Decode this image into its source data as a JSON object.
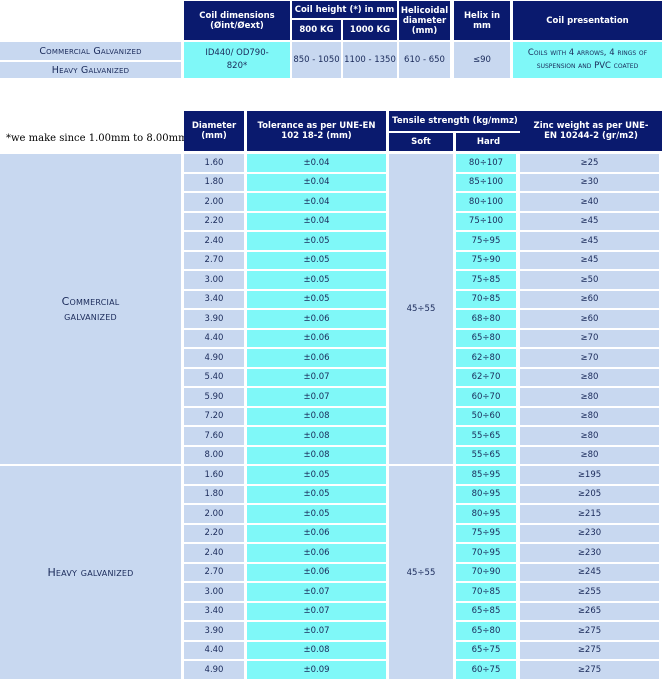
{
  "coil_table": {
    "headers": {
      "coil_dimensions": "Coil dimensions (Øint/Øext)",
      "coil_height": "Coil height (*) in mm",
      "kg800": "800 KG",
      "kg1000": "1000 KG",
      "helicoidal": "Helicoidal diameter (mm)",
      "helix": "Helix in mm",
      "presentation": "Coil presentation"
    },
    "row_commercial": "Commercial Galvanized",
    "row_heavy": "Heavy Galvanized",
    "dimensions": "ID440/ OD790-820*",
    "h800": "850 - 1050",
    "h1000": "1100 - 1350",
    "helicoidal_value": "610 - 650",
    "helix_value": "≤90",
    "presentation_value": "Coils with 4 arrows, 4 rings of suspension and PVC coated"
  },
  "note": "*we make since 1.00mm to 8.00mm",
  "spec_table": {
    "headers": {
      "diameter": "Diameter (mm)",
      "tolerance": "Tolerance as per UNE-EN 102 18-2 (mm)",
      "tensile": "Tensile strength (kg/mmz)",
      "soft": "Soft",
      "hard": "Hard",
      "zinc": "Zinc weight as per UNE-EN 10244-2 (gr/m2)"
    },
    "groups": [
      {
        "label": "Commercial galvanized",
        "soft": "45÷55",
        "rows": [
          {
            "d": "1.60",
            "t": "±0.04",
            "h": "80÷107",
            "z": "≥25"
          },
          {
            "d": "1.80",
            "t": "±0.04",
            "h": "85÷100",
            "z": "≥30"
          },
          {
            "d": "2.00",
            "t": "±0.04",
            "h": "80÷100",
            "z": "≥40"
          },
          {
            "d": "2.20",
            "t": "±0.04",
            "h": "75÷100",
            "z": "≥45"
          },
          {
            "d": "2.40",
            "t": "±0.05",
            "h": "75÷95",
            "z": "≥45"
          },
          {
            "d": "2.70",
            "t": "±0.05",
            "h": "75÷90",
            "z": "≥45"
          },
          {
            "d": "3.00",
            "t": "±0.05",
            "h": "75÷85",
            "z": "≥50"
          },
          {
            "d": "3.40",
            "t": "±0.05",
            "h": "70÷85",
            "z": "≥60"
          },
          {
            "d": "3.90",
            "t": "±0.06",
            "h": "68÷80",
            "z": "≥60"
          },
          {
            "d": "4.40",
            "t": "±0.06",
            "h": "65÷80",
            "z": "≥70"
          },
          {
            "d": "4.90",
            "t": "±0.06",
            "h": "62÷80",
            "z": "≥70"
          },
          {
            "d": "5.40",
            "t": "±0.07",
            "h": "62÷70",
            "z": "≥80"
          },
          {
            "d": "5.90",
            "t": "±0.07",
            "h": "60÷70",
            "z": "≥80"
          },
          {
            "d": "7.20",
            "t": "±0.08",
            "h": "50÷60",
            "z": "≥80"
          },
          {
            "d": "7.60",
            "t": "±0.08",
            "h": "55÷65",
            "z": "≥80"
          },
          {
            "d": "8.00",
            "t": "±0.08",
            "h": "55÷65",
            "z": "≥80"
          }
        ]
      },
      {
        "label": "Heavy galvanized",
        "soft": "45÷55",
        "rows": [
          {
            "d": "1.60",
            "t": "±0.05",
            "h": "85÷95",
            "z": "≥195"
          },
          {
            "d": "1.80",
            "t": "±0.05",
            "h": "80÷95",
            "z": "≥205"
          },
          {
            "d": "2.00",
            "t": "±0.05",
            "h": "80÷95",
            "z": "≥215"
          },
          {
            "d": "2.20",
            "t": "±0.06",
            "h": "75÷95",
            "z": "≥230"
          },
          {
            "d": "2.40",
            "t": "±0.06",
            "h": "70÷95",
            "z": "≥230"
          },
          {
            "d": "2.70",
            "t": "±0.06",
            "h": "70÷90",
            "z": "≥245"
          },
          {
            "d": "3.00",
            "t": "±0.07",
            "h": "70÷85",
            "z": "≥255"
          },
          {
            "d": "3.40",
            "t": "±0.07",
            "h": "65÷85",
            "z": "≥265"
          },
          {
            "d": "3.90",
            "t": "±0.07",
            "h": "65÷80",
            "z": "≥275"
          },
          {
            "d": "4.40",
            "t": "±0.08",
            "h": "65÷75",
            "z": "≥275"
          },
          {
            "d": "4.90",
            "t": "±0.09",
            "h": "60÷75",
            "z": "≥275"
          }
        ]
      }
    ]
  }
}
